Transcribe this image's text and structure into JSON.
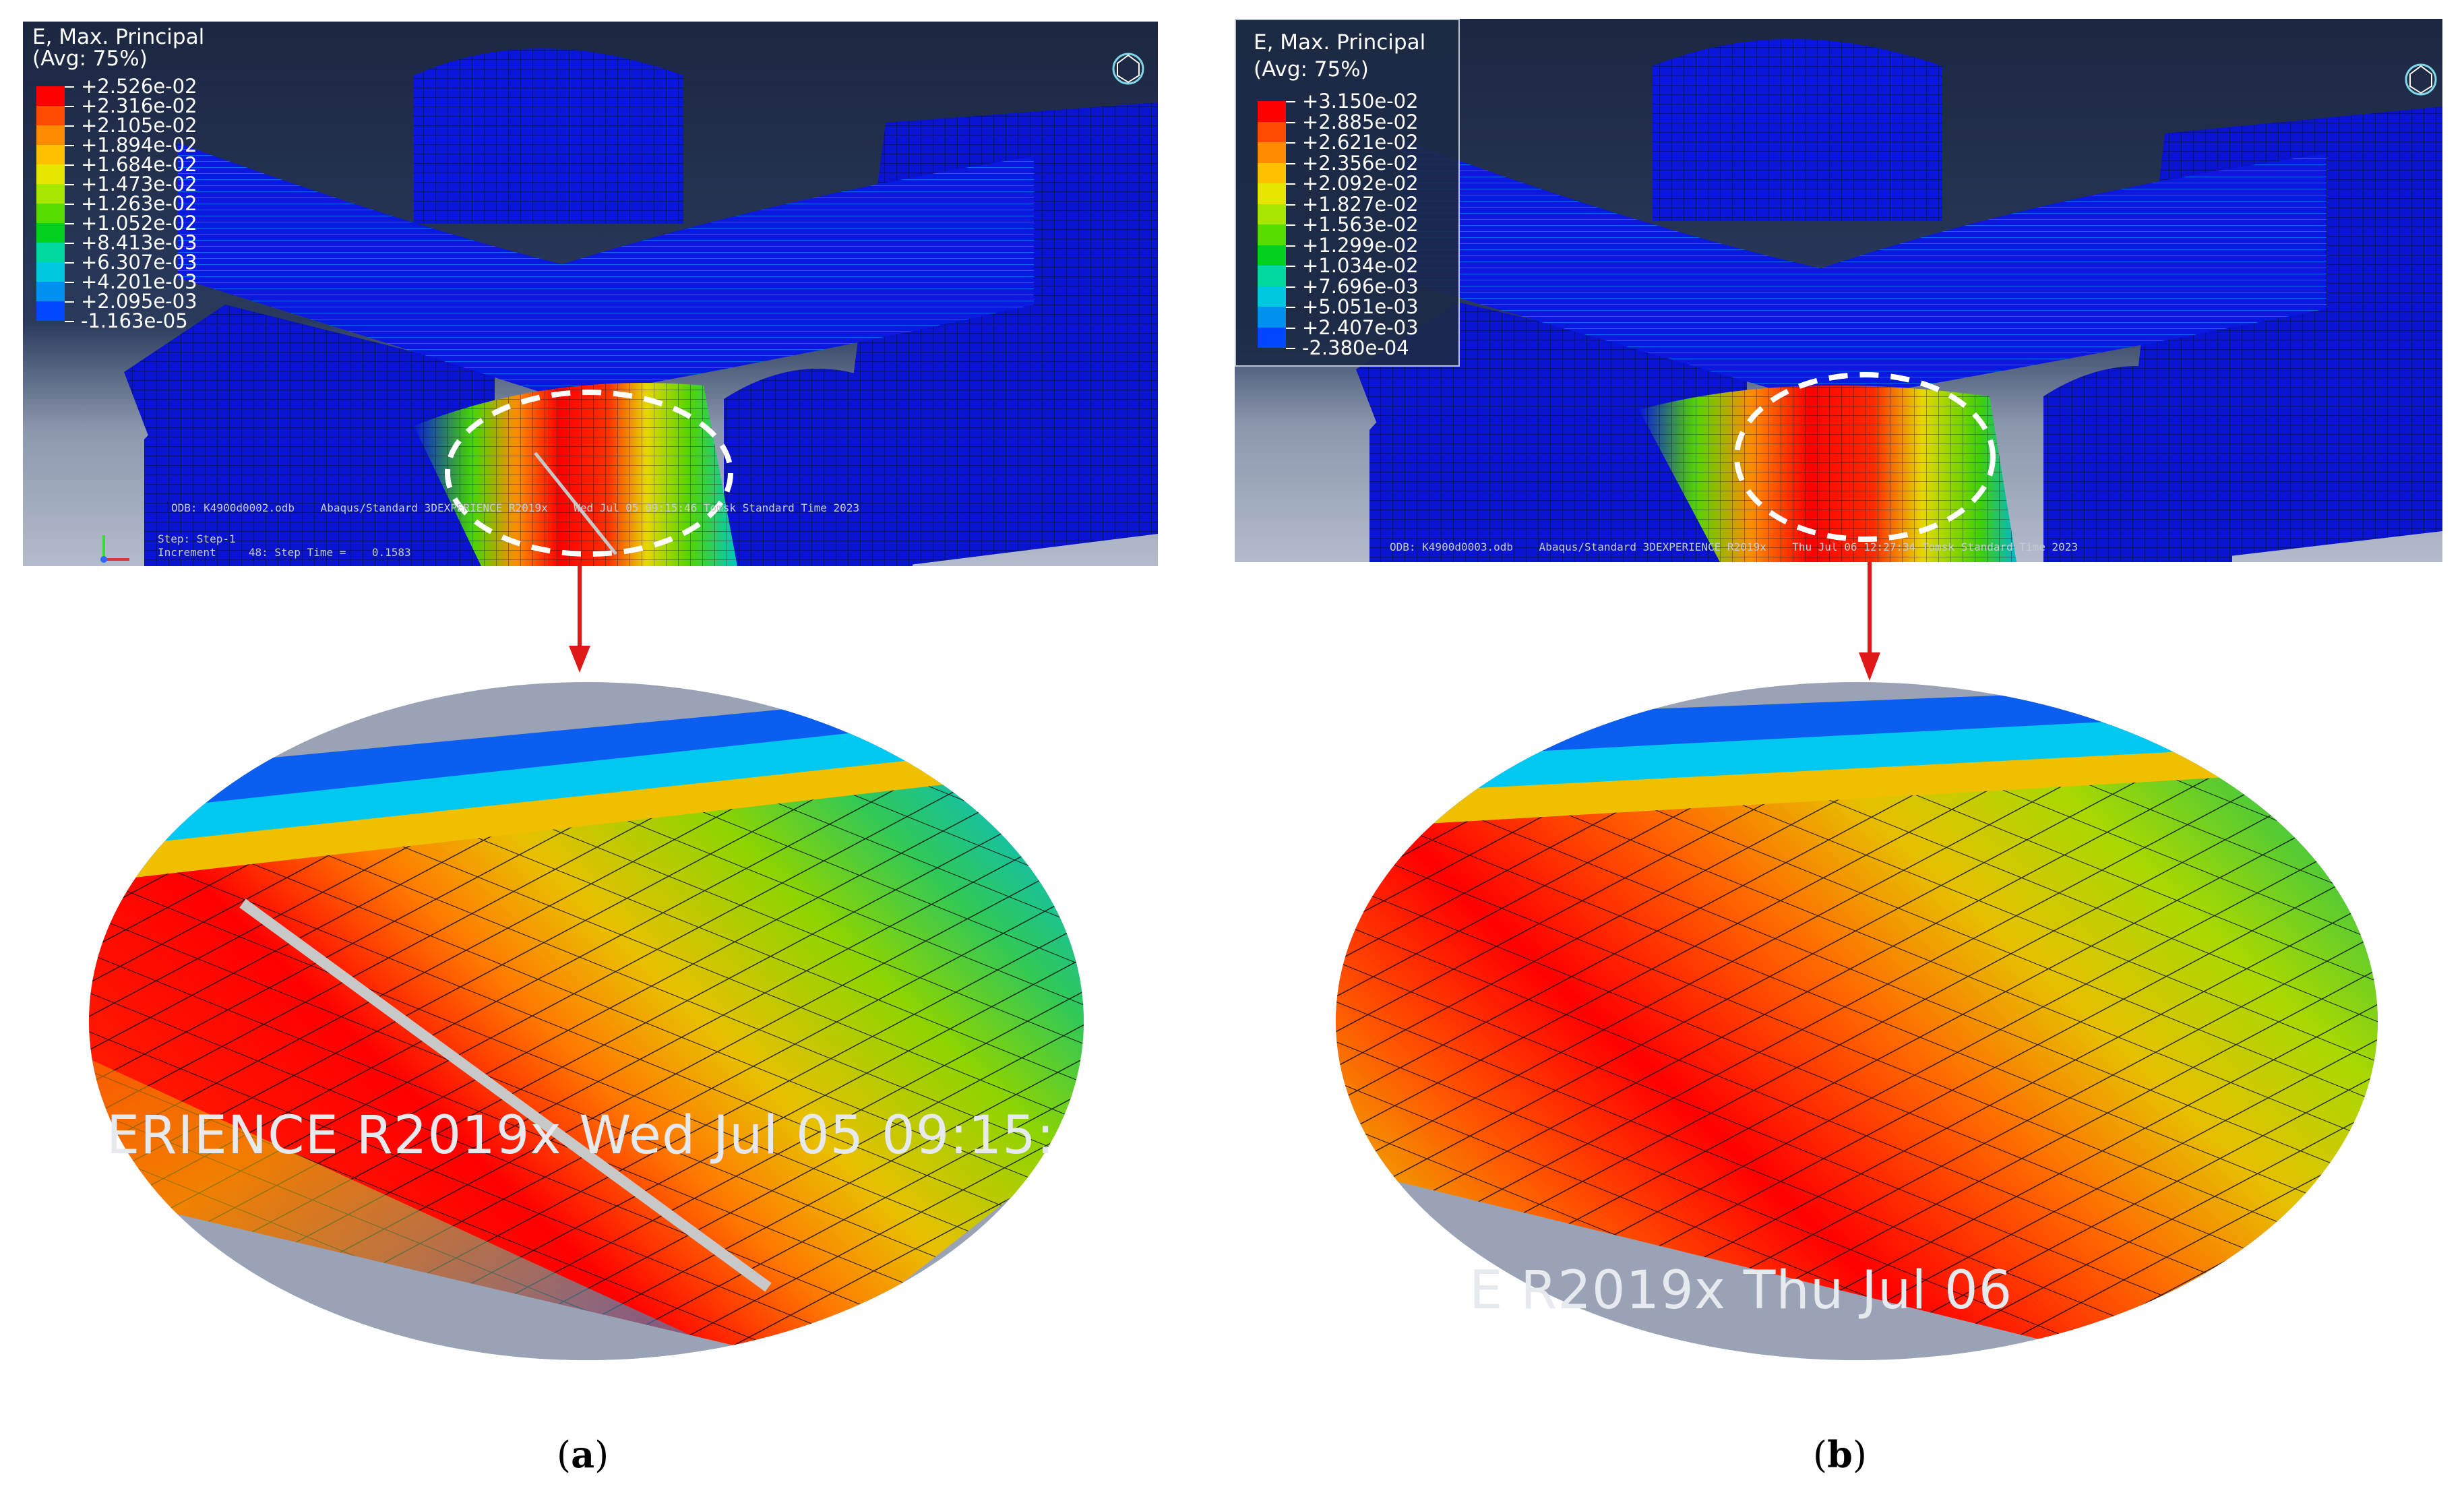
{
  "panels": [
    {
      "id": "a",
      "legend": {
        "title_line1": "E, Max. Principal",
        "title_line2": "(Avg: 75%)",
        "values": [
          "+2.526e-02",
          "+2.316e-02",
          "+2.105e-02",
          "+1.894e-02",
          "+1.684e-02",
          "+1.473e-02",
          "+1.263e-02",
          "+1.052e-02",
          "+8.413e-03",
          "+6.307e-03",
          "+4.201e-03",
          "+2.095e-03",
          "-1.163e-05"
        ]
      },
      "footer_odb": "ODB: K4900d0002.odb    Abaqus/Standard 3DEXPERIENCE R2019x    Wed Jul 05 09:15:46 Tomsk Standard Time 2023",
      "footer_step": "Step: Step-1",
      "footer_increment": "Increment     48: Step Time =    0.1583",
      "zoom_text": "ERIENCE R2019x    Wed Jul 05 09:15:",
      "caption_letter": "a"
    },
    {
      "id": "b",
      "legend": {
        "title_line1": "E, Max. Principal",
        "title_line2": "(Avg: 75%)",
        "values": [
          "+3.150e-02",
          "+2.885e-02",
          "+2.621e-02",
          "+2.356e-02",
          "+2.092e-02",
          "+1.827e-02",
          "+1.563e-02",
          "+1.299e-02",
          "+1.034e-02",
          "+7.696e-03",
          "+5.051e-03",
          "+2.407e-03",
          "-2.380e-04"
        ]
      },
      "footer_odb": "ODB: K4900d0003.odb    Abaqus/Standard 3DEXPERIENCE R2019x    Thu Jul 06 12:27:34 Tomsk Standard Time 2023",
      "zoom_text": "E R2019x    Thu Jul 06",
      "caption_letter": "b"
    }
  ],
  "colors": {
    "background": "#1d2a45",
    "floor": "#aab3c3",
    "mesh_blue": "#0a14d8",
    "legend_scale": [
      "#ff0000",
      "#ff4a00",
      "#ff8c00",
      "#ffc000",
      "#e6e600",
      "#a6e600",
      "#55dd00",
      "#00d020",
      "#00d8a0",
      "#00c8e0",
      "#0090f0",
      "#0048ff",
      "#0000e8"
    ]
  }
}
